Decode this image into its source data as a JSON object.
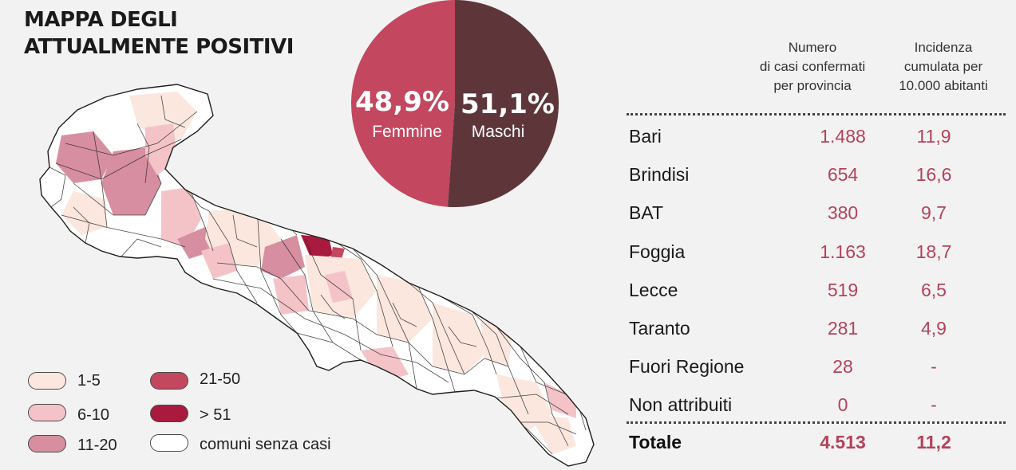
{
  "title": {
    "line1": "MAPPA DEGLI",
    "line2": "ATTUALMENTE POSITIVI"
  },
  "chart_data": [
    {
      "type": "pie",
      "slices": [
        {
          "label": "Femmine",
          "value": 48.9,
          "display": "48,9%",
          "color": "#c2475f"
        },
        {
          "label": "Maschi",
          "value": 51.1,
          "display": "51,1%",
          "color": "#5e363a"
        }
      ]
    },
    {
      "type": "table",
      "columns": [
        "",
        "Numero di casi confermati per provincia",
        "Incidenza cumulata per 10.000 abitanti"
      ],
      "rows": [
        {
          "name": "Bari",
          "cases": "1.488",
          "incidence": "11,9"
        },
        {
          "name": "Brindisi",
          "cases": "654",
          "incidence": "16,6"
        },
        {
          "name": "BAT",
          "cases": "380",
          "incidence": "9,7"
        },
        {
          "name": "Foggia",
          "cases": "1.163",
          "incidence": "18,7"
        },
        {
          "name": "Lecce",
          "cases": "519",
          "incidence": "6,5"
        },
        {
          "name": "Taranto",
          "cases": "281",
          "incidence": "4,9"
        },
        {
          "name": "Fuori Regione",
          "cases": "28",
          "incidence": "-"
        },
        {
          "name": "Non attribuiti",
          "cases": "0",
          "incidence": "-"
        }
      ],
      "total": {
        "name": "Totale",
        "cases": "4.513",
        "incidence": "11,2"
      }
    }
  ],
  "table_header": {
    "col1": [
      "Numero",
      "di casi confermati",
      "per provincia"
    ],
    "col2": [
      "Incidenza",
      "cumulata per",
      "10.000 abitanti"
    ]
  },
  "legend": [
    {
      "label": "1-5",
      "color": "#fbe7de"
    },
    {
      "label": "6-10",
      "color": "#f4c3c8"
    },
    {
      "label": "11-20",
      "color": "#d68ea0"
    },
    {
      "label": "21-50",
      "color": "#c2475f"
    },
    {
      "label": "> 51",
      "color": "#a81a3e"
    },
    {
      "label": "comuni senza casi",
      "color": "#ffffff"
    }
  ]
}
